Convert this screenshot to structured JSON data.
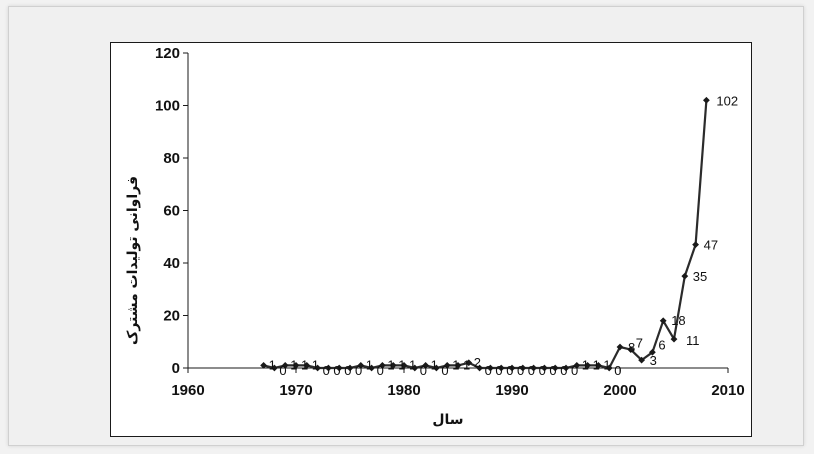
{
  "chart_data": {
    "type": "line",
    "title": "",
    "xlabel": "سال",
    "ylabel": "فراوانی تولیدات مشترک",
    "xlim": [
      1960,
      2010
    ],
    "ylim": [
      0,
      120
    ],
    "x_ticks": [
      1960,
      1970,
      1980,
      1990,
      2000,
      2010
    ],
    "y_ticks": [
      0,
      20,
      40,
      60,
      80,
      100,
      120
    ],
    "grid": false,
    "legend": "none",
    "series": [
      {
        "x": [
          1967,
          1968,
          1969,
          1970,
          1971,
          1972,
          1973,
          1974,
          1975,
          1976,
          1977,
          1978,
          1979,
          1980,
          1981,
          1982,
          1983,
          1984,
          1985,
          1986,
          1987,
          1988,
          1989,
          1990,
          1991,
          1992,
          1993,
          1994,
          1995,
          1996,
          1997,
          1998,
          1999,
          2000,
          2001,
          2002,
          2003,
          2004,
          2005,
          2006,
          2007,
          2008
        ],
        "values": [
          1,
          0,
          1,
          1,
          1,
          0,
          0,
          0,
          0,
          1,
          0,
          1,
          1,
          1,
          0,
          1,
          0,
          1,
          1,
          2,
          0,
          0,
          0,
          0,
          0,
          0,
          0,
          0,
          0,
          1,
          1,
          1,
          0,
          8,
          7,
          3,
          6,
          18,
          11,
          35,
          47,
          102
        ],
        "data_labels": [
          "1",
          "0",
          "1",
          "1",
          "1",
          "0",
          "0",
          "0",
          "0",
          "1",
          "0",
          "1",
          "1",
          "1",
          "0",
          "1",
          "0",
          "1",
          "1",
          "2",
          "0",
          "0",
          "0",
          "0",
          "0",
          "0",
          "0",
          "0",
          "0",
          "1",
          "1",
          "1",
          "0",
          "8",
          "7",
          "3",
          "6",
          "18",
          "11",
          "35",
          "47",
          "102"
        ]
      }
    ]
  },
  "colors": {
    "line": "#2b2b2b",
    "marker": "#1a1a1a",
    "axis": "#1a1a1a"
  }
}
